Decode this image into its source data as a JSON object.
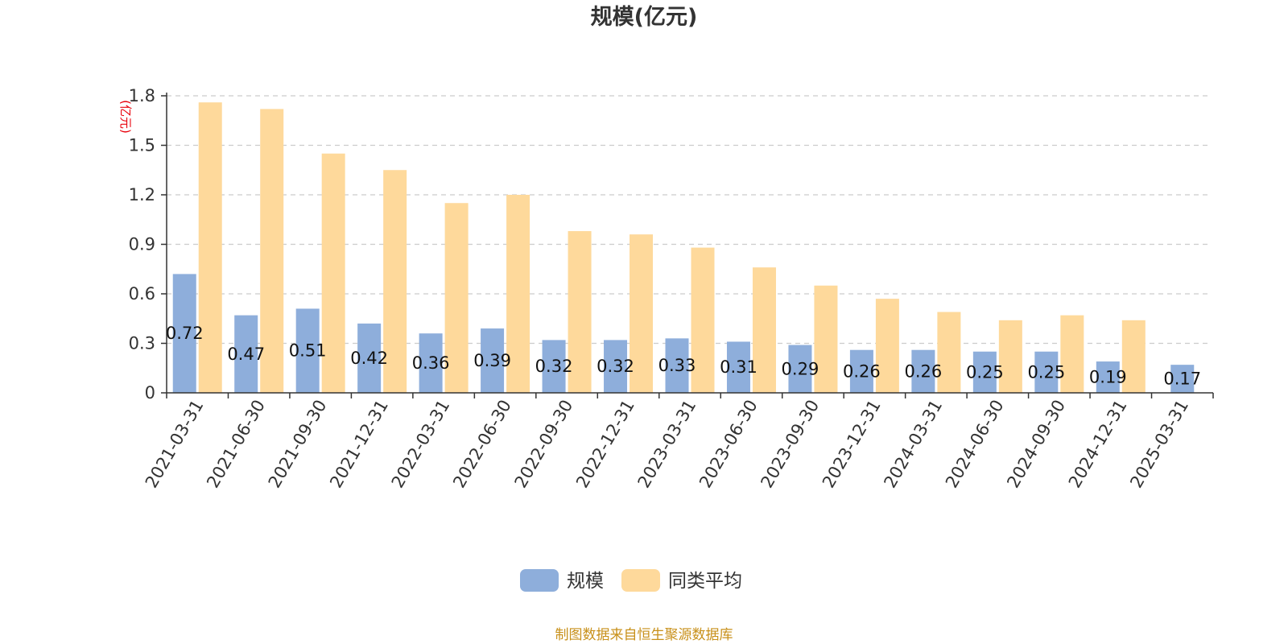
{
  "chart_data": {
    "type": "bar",
    "title": "规模(亿元)",
    "ylabel": "(亿元)",
    "xlabel": "",
    "ylim": [
      0,
      1.8
    ],
    "yticks": [
      "0",
      "0.3",
      "0.6",
      "0.9",
      "1.2",
      "1.5",
      "1.8"
    ],
    "grid": true,
    "legend_position": "bottom-center",
    "categories": [
      "2021-03-31",
      "2021-06-30",
      "2021-09-30",
      "2021-12-31",
      "2022-03-31",
      "2022-06-30",
      "2022-09-30",
      "2022-12-31",
      "2023-03-31",
      "2023-06-30",
      "2023-09-30",
      "2023-12-31",
      "2024-03-31",
      "2024-06-30",
      "2024-09-30",
      "2024-12-31",
      "2025-03-31"
    ],
    "series": [
      {
        "name": "规模",
        "color": "#8eaedb",
        "values": [
          0.72,
          0.47,
          0.51,
          0.42,
          0.36,
          0.39,
          0.32,
          0.32,
          0.33,
          0.31,
          0.29,
          0.26,
          0.26,
          0.25,
          0.25,
          0.19,
          0.17
        ],
        "labels": [
          "0.72",
          "0.47",
          "0.51",
          "0.42",
          "0.36",
          "0.39",
          "0.32",
          "0.32",
          "0.33",
          "0.31",
          "0.29",
          "0.26",
          "0.26",
          "0.25",
          "0.25",
          "0.19",
          "0.17"
        ]
      },
      {
        "name": "同类平均",
        "color": "#fed99b",
        "values": [
          1.76,
          1.72,
          1.45,
          1.35,
          1.15,
          1.2,
          0.98,
          0.96,
          0.88,
          0.76,
          0.65,
          0.57,
          0.49,
          0.44,
          0.47,
          0.44,
          null
        ]
      }
    ]
  },
  "footer": {
    "source": "制图数据来自恒生聚源数据库",
    "source_color": "#c8901a"
  },
  "colors": {
    "unit": "#e8000b",
    "axis": "#333333",
    "grid": "#cccccc"
  }
}
